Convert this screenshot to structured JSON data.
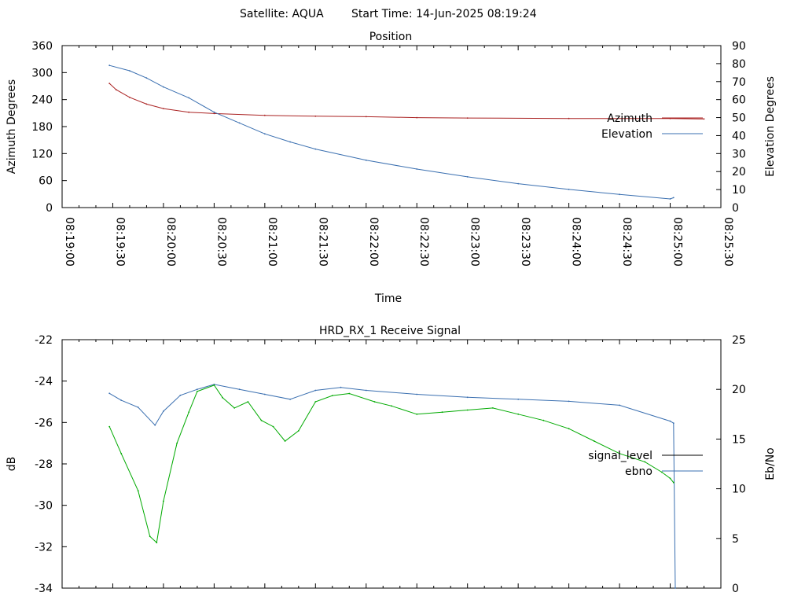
{
  "header": {
    "satellite": "Satellite: AQUA",
    "start_time": "Start Time: 14-Jun-2025 08:19:24"
  },
  "chart_data": [
    {
      "type": "line",
      "title": "Position",
      "xlabel": "Time",
      "ylabel": "Azimuth Degrees",
      "y2label": "Elevation Degrees",
      "x_ticks": [
        "08:19:00",
        "08:19:30",
        "08:20:00",
        "08:20:30",
        "08:21:00",
        "08:21:30",
        "08:22:00",
        "08:22:30",
        "08:23:00",
        "08:23:30",
        "08:24:00",
        "08:24:30",
        "08:25:00",
        "08:25:30"
      ],
      "xlim": [
        "08:19:00",
        "08:25:30"
      ],
      "ylim": [
        0,
        360
      ],
      "y_ticks": [
        0,
        60,
        120,
        180,
        240,
        300,
        360
      ],
      "y2lim": [
        0,
        90
      ],
      "y2_ticks": [
        0,
        10,
        20,
        30,
        40,
        50,
        60,
        70,
        80,
        90
      ],
      "legend_position": "right",
      "series": [
        {
          "name": "Azimuth",
          "axis": "y",
          "color": "#aa2222",
          "x": [
            "08:19:28",
            "08:19:32",
            "08:19:40",
            "08:19:50",
            "08:20:00",
            "08:20:15",
            "08:20:30",
            "08:21:00",
            "08:21:30",
            "08:22:00",
            "08:22:30",
            "08:23:00",
            "08:24:00",
            "08:25:00",
            "08:25:20"
          ],
          "y": [
            276,
            262,
            245,
            230,
            220,
            212,
            209,
            205,
            203,
            202,
            200,
            199,
            198,
            198,
            197
          ]
        },
        {
          "name": "Elevation",
          "axis": "y2",
          "color": "#3a6fb0",
          "x": [
            "08:19:28",
            "08:19:40",
            "08:19:50",
            "08:20:00",
            "08:20:15",
            "08:20:30",
            "08:20:45",
            "08:21:00",
            "08:21:15",
            "08:21:30",
            "08:22:00",
            "08:22:30",
            "08:23:00",
            "08:23:30",
            "08:24:00",
            "08:24:30",
            "08:25:00",
            "08:25:02"
          ],
          "y": [
            79,
            76,
            72,
            67,
            61,
            53,
            47,
            41,
            36.5,
            32.5,
            26.3,
            21.4,
            17.1,
            13.3,
            10.1,
            7.3,
            4.8,
            5.5
          ]
        }
      ]
    },
    {
      "type": "line",
      "title": "HRD_RX_1 Receive Signal",
      "ylabel": "dB",
      "y2label": "Eb/No",
      "xlim": [
        "08:19:00",
        "08:25:30"
      ],
      "ylim": [
        -34,
        -22
      ],
      "y_ticks": [
        -34,
        -32,
        -30,
        -28,
        -26,
        -24,
        -22
      ],
      "y2lim": [
        0,
        25
      ],
      "y2_ticks": [
        0,
        5,
        10,
        15,
        20,
        25
      ],
      "legend_position": "right",
      "series": [
        {
          "name": "signal_level",
          "axis": "y",
          "color": "#000000",
          "x": [],
          "y": []
        },
        {
          "name": "ebno",
          "axis": "y2",
          "color": "#3a6fb0",
          "x": [
            "08:19:28",
            "08:19:35",
            "08:19:45",
            "08:19:55",
            "08:20:00",
            "08:20:10",
            "08:20:20",
            "08:20:30",
            "08:20:45",
            "08:21:00",
            "08:21:15",
            "08:21:30",
            "08:21:45",
            "08:22:00",
            "08:22:30",
            "08:23:00",
            "08:23:30",
            "08:24:00",
            "08:24:30",
            "08:25:00",
            "08:25:02",
            "08:25:03"
          ],
          "y": [
            19.6,
            18.9,
            18.2,
            16.4,
            17.8,
            19.4,
            20.0,
            20.5,
            20.0,
            19.5,
            19.0,
            19.9,
            20.2,
            19.9,
            19.5,
            19.2,
            19.0,
            18.8,
            18.4,
            16.8,
            16.6,
            0
          ]
        },
        {
          "name": "",
          "axis": "y",
          "color": "#00aa00",
          "x": [
            "08:19:28",
            "08:19:35",
            "08:19:45",
            "08:19:52",
            "08:19:56",
            "08:20:00",
            "08:20:08",
            "08:20:15",
            "08:20:20",
            "08:20:30",
            "08:20:35",
            "08:20:42",
            "08:20:50",
            "08:20:58",
            "08:21:05",
            "08:21:12",
            "08:21:20",
            "08:21:30",
            "08:21:40",
            "08:21:50",
            "08:22:05",
            "08:22:15",
            "08:22:30",
            "08:22:45",
            "08:23:00",
            "08:23:15",
            "08:23:30",
            "08:23:45",
            "08:24:00",
            "08:24:15",
            "08:24:30",
            "08:24:45",
            "08:24:55",
            "08:25:00",
            "08:25:02"
          ],
          "y": [
            -26.2,
            -27.5,
            -29.3,
            -31.5,
            -31.8,
            -29.8,
            -27.0,
            -25.5,
            -24.5,
            -24.2,
            -24.8,
            -25.3,
            -25.0,
            -25.9,
            -26.2,
            -26.9,
            -26.4,
            -25.0,
            -24.7,
            -24.6,
            -25.0,
            -25.2,
            -25.6,
            -25.5,
            -25.4,
            -25.3,
            -25.6,
            -25.9,
            -26.3,
            -26.9,
            -27.5,
            -27.9,
            -28.4,
            -28.7,
            -28.9
          ]
        }
      ]
    }
  ]
}
